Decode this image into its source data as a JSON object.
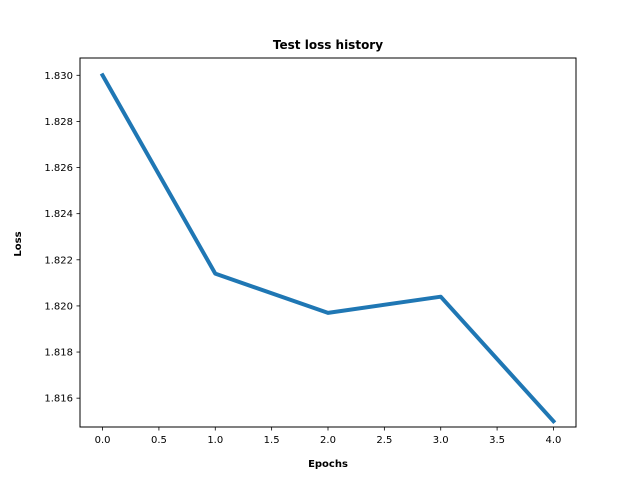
{
  "chart_data": {
    "type": "line",
    "title": "Test loss history",
    "xlabel": "Epochs",
    "ylabel": "Loss",
    "x": [
      0,
      1,
      2,
      3,
      4
    ],
    "series": [
      {
        "values": [
          1.83,
          1.8214,
          1.8197,
          1.8204,
          1.815
        ]
      }
    ],
    "xlim": [
      -0.2,
      4.2
    ],
    "ylim": [
      1.81475,
      1.83075
    ],
    "x_ticks": [
      0,
      0.5,
      1,
      1.5,
      2,
      2.5,
      3,
      3.5,
      4
    ],
    "x_tick_labels": [
      "0.0",
      "0.5",
      "1.0",
      "1.5",
      "2.0",
      "2.5",
      "3.0",
      "3.5",
      "4.0"
    ],
    "y_ticks": [
      1.816,
      1.818,
      1.82,
      1.822,
      1.824,
      1.826,
      1.828,
      1.83
    ],
    "y_tick_labels": [
      "1.816",
      "1.818",
      "1.820",
      "1.822",
      "1.824",
      "1.826",
      "1.828",
      "1.830"
    ],
    "grid": false,
    "legend": "none",
    "line_color": "#1f77b4"
  }
}
